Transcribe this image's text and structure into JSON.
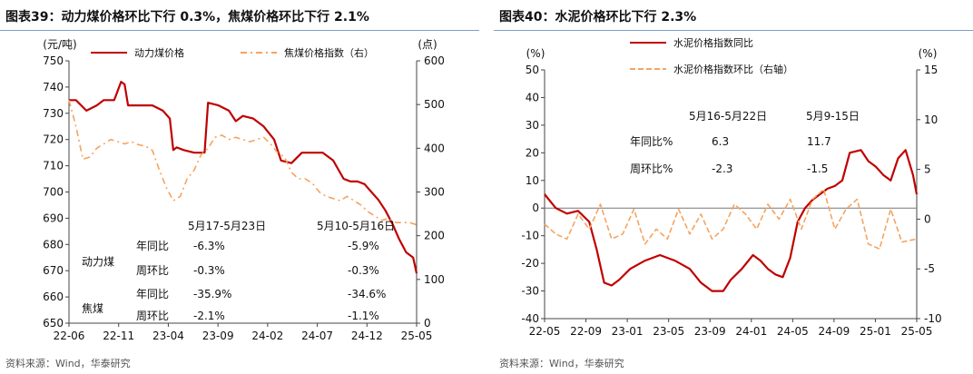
{
  "left": {
    "title": "图表39：动力煤价格环比下行 0.3%，焦煤价格环比下行 2.1%",
    "unit_left": "(元/吨)",
    "unit_right": "(点)",
    "source": "资料来源：Wind，华泰研究",
    "legend": [
      "动力煤价格",
      "焦煤价格指数（右）"
    ],
    "colors": {
      "coal": "#c00000",
      "coking": "#f4a460"
    },
    "table": {
      "headers": [
        "5月17-5月23日",
        "5月10-5月16日"
      ],
      "groups": [
        {
          "name": "动力煤",
          "rows": [
            {
              "label": "年同比",
              "v1": "-6.3%",
              "v2": "-5.9%"
            },
            {
              "label": "周环比",
              "v1": "-0.3%",
              "v2": "-0.3%"
            }
          ]
        },
        {
          "name": "焦煤",
          "rows": [
            {
              "label": "年同比",
              "v1": "-35.9%",
              "v2": "-34.6%"
            },
            {
              "label": "周环比",
              "v1": "-2.1%",
              "v2": "-1.1%"
            }
          ]
        }
      ]
    }
  },
  "right": {
    "title": "图表40：水泥价格环比下行 2.3%",
    "unit_left": "(%)",
    "unit_right": "(%)",
    "source": "资料来源：Wind，华泰研究",
    "legend": [
      "水泥价格指数同比",
      "水泥价格指数环比（右轴）"
    ],
    "colors": {
      "yoy": "#c00000",
      "wow": "#f4a460"
    },
    "table": {
      "headers": [
        "5月16-5月22日",
        "5月9-15日"
      ],
      "rows": [
        {
          "label": "年同比%",
          "v1": "6.3",
          "v2": "11.7"
        },
        {
          "label": "周环比%",
          "v1": "-2.3",
          "v2": "-1.5"
        }
      ]
    }
  },
  "chart_data": [
    {
      "type": "line",
      "xlabel": "",
      "x_ticks": [
        "22-06",
        "22-11",
        "23-04",
        "23-09",
        "24-02",
        "24-07",
        "24-12",
        "25-05"
      ],
      "y_left": {
        "label": "(元/吨)",
        "lim": [
          650,
          750
        ],
        "ticks": [
          650,
          660,
          670,
          680,
          690,
          700,
          710,
          720,
          730,
          740,
          750
        ]
      },
      "y_right": {
        "label": "(点)",
        "lim": [
          0,
          600
        ],
        "ticks": [
          0,
          100,
          200,
          300,
          400,
          500,
          600
        ]
      },
      "series": [
        {
          "name": "动力煤价格",
          "axis": "left",
          "style": "solid",
          "t": [
            0,
            0.02,
            0.05,
            0.08,
            0.1,
            0.13,
            0.15,
            0.16,
            0.17,
            0.2,
            0.24,
            0.27,
            0.29,
            0.3,
            0.31,
            0.33,
            0.36,
            0.39,
            0.4,
            0.43,
            0.46,
            0.48,
            0.5,
            0.53,
            0.56,
            0.59,
            0.61,
            0.64,
            0.67,
            0.7,
            0.73,
            0.76,
            0.79,
            0.81,
            0.83,
            0.85,
            0.87,
            0.89,
            0.91,
            0.93,
            0.95,
            0.97,
            0.99,
            1.0
          ],
          "values": [
            735,
            735,
            731,
            733,
            735,
            735,
            742,
            741,
            733,
            733,
            733,
            731,
            728,
            716,
            717,
            716,
            715,
            715,
            734,
            733,
            731,
            727,
            729,
            728,
            725,
            720,
            712,
            711,
            715,
            715,
            715,
            712,
            705,
            704,
            704,
            703,
            700,
            697,
            693,
            688,
            682,
            677,
            675,
            669
          ]
        },
        {
          "name": "焦煤价格指数（右）",
          "axis": "right",
          "style": "dashdot",
          "t": [
            0,
            0.02,
            0.04,
            0.06,
            0.08,
            0.1,
            0.12,
            0.14,
            0.16,
            0.18,
            0.2,
            0.22,
            0.24,
            0.26,
            0.28,
            0.3,
            0.32,
            0.34,
            0.36,
            0.38,
            0.4,
            0.42,
            0.44,
            0.46,
            0.48,
            0.5,
            0.52,
            0.54,
            0.56,
            0.58,
            0.6,
            0.62,
            0.64,
            0.66,
            0.68,
            0.7,
            0.72,
            0.74,
            0.76,
            0.78,
            0.8,
            0.82,
            0.84,
            0.86,
            0.88,
            0.9,
            0.92,
            0.94,
            0.96,
            0.98,
            1.0
          ],
          "values": [
            510,
            450,
            375,
            380,
            400,
            410,
            420,
            415,
            410,
            415,
            408,
            405,
            395,
            350,
            310,
            280,
            290,
            330,
            350,
            385,
            400,
            425,
            430,
            420,
            425,
            420,
            415,
            420,
            425,
            410,
            390,
            380,
            345,
            330,
            330,
            320,
            300,
            290,
            285,
            280,
            290,
            280,
            270,
            255,
            245,
            235,
            240,
            230,
            230,
            230,
            225
          ]
        }
      ]
    },
    {
      "type": "line",
      "xlabel": "",
      "x_ticks": [
        "22-05",
        "22-09",
        "23-01",
        "23-05",
        "23-09",
        "24-01",
        "24-05",
        "24-09",
        "25-01",
        "25-05"
      ],
      "y_left": {
        "label": "(%)",
        "lim": [
          -40,
          50
        ],
        "ticks": [
          -40,
          -30,
          -20,
          -10,
          0,
          10,
          20,
          30,
          40,
          50
        ]
      },
      "y_right": {
        "label": "(%)",
        "lim": [
          -10,
          15
        ],
        "ticks": [
          -10,
          -5,
          0,
          5,
          10,
          15
        ]
      },
      "series": [
        {
          "name": "水泥价格指数同比",
          "axis": "left",
          "style": "solid",
          "t": [
            0,
            0.03,
            0.06,
            0.09,
            0.12,
            0.14,
            0.16,
            0.18,
            0.2,
            0.23,
            0.27,
            0.31,
            0.35,
            0.39,
            0.42,
            0.45,
            0.48,
            0.5,
            0.53,
            0.56,
            0.58,
            0.6,
            0.62,
            0.64,
            0.66,
            0.68,
            0.7,
            0.72,
            0.74,
            0.76,
            0.78,
            0.8,
            0.82,
            0.85,
            0.87,
            0.89,
            0.91,
            0.93,
            0.95,
            0.97,
            0.99,
            1.0
          ],
          "values": [
            5,
            0,
            -2,
            -1,
            -5,
            -15,
            -27,
            -28,
            -26,
            -22,
            -19,
            -17,
            -19,
            -22,
            -27,
            -30,
            -30,
            -26,
            -22,
            -17,
            -19,
            -22,
            -24,
            -25,
            -18,
            -5,
            0,
            3,
            5,
            7,
            8,
            10,
            20,
            21,
            17,
            15,
            12,
            10,
            18,
            21,
            12,
            5
          ]
        },
        {
          "name": "水泥价格指数环比（右轴）",
          "axis": "right",
          "style": "dashed",
          "t": [
            0,
            0.03,
            0.06,
            0.09,
            0.12,
            0.15,
            0.18,
            0.21,
            0.24,
            0.27,
            0.3,
            0.33,
            0.36,
            0.39,
            0.42,
            0.45,
            0.48,
            0.51,
            0.54,
            0.57,
            0.6,
            0.63,
            0.66,
            0.69,
            0.72,
            0.75,
            0.78,
            0.81,
            0.84,
            0.87,
            0.9,
            0.93,
            0.96,
            1.0
          ],
          "values": [
            -0.5,
            -1.5,
            -2.0,
            0.5,
            -1.0,
            1.5,
            -2.0,
            -1.5,
            1.0,
            -2.5,
            -1.0,
            -2.0,
            1.0,
            -1.5,
            0.5,
            -2.0,
            -1.0,
            1.5,
            0.5,
            -1.0,
            1.5,
            0.0,
            2.0,
            -1.0,
            2.0,
            3.0,
            -1.0,
            1.0,
            2.0,
            -2.5,
            -3.0,
            1.0,
            -2.3,
            -2.0
          ]
        }
      ]
    }
  ]
}
